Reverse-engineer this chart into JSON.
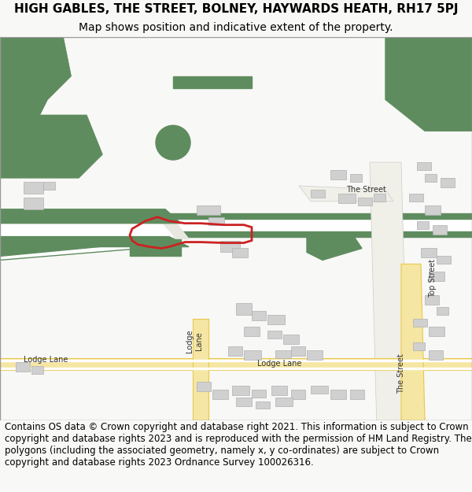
{
  "title_line1": "HIGH GABLES, THE STREET, BOLNEY, HAYWARDS HEATH, RH17 5PJ",
  "title_line2": "Map shows position and indicative extent of the property.",
  "footer_text": "Contains OS data © Crown copyright and database right 2021. This information is subject to Crown copyright and database rights 2023 and is reproduced with the permission of HM Land Registry. The polygons (including the associated geometry, namely x, y co-ordinates) are subject to Crown copyright and database rights 2023 Ordnance Survey 100026316.",
  "bg_color": "#f8f8f6",
  "map_bg": "#ffffff",
  "green_color": "#5f8c5f",
  "green_light": "#6b9e6b",
  "road_yellow": "#f5e6a3",
  "road_yellow_border": "#e8c84a",
  "road_white": "#ffffff",
  "road_white_border": "#cccccc",
  "building_color": "#d0d0d0",
  "building_border": "#b0b0b0",
  "plot_color": "#cc2222",
  "green_area_color": "#6b9e6b",
  "title_fontsize": 11,
  "subtitle_fontsize": 10,
  "footer_fontsize": 8.5
}
